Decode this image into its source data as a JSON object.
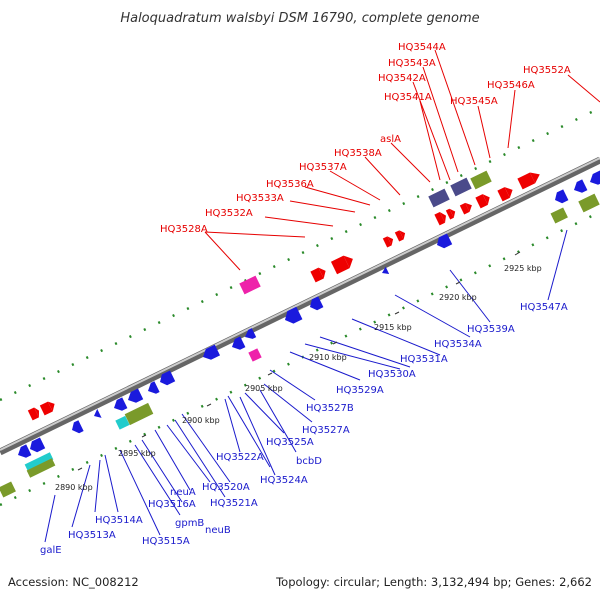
{
  "title": "Haloquadratum walsbyi DSM 16790, complete genome",
  "accession": "Accession: NC_008212",
  "summary": "Topology: circular; Length: 3,132,494 bp; Genes: 2,662",
  "colors": {
    "backbone": "#888888",
    "forward_gene": "#ee0000",
    "reverse_gene": "#1a1add",
    "rna_pink": "#ee22aa",
    "olive": "#7a9a2a",
    "slate": "#4a4a8a",
    "cyan": "#22cccc",
    "dots": "#2a8a2a"
  },
  "top_labels": [
    "HQ3544A",
    "HQ3543A",
    "HQ3542A",
    "HQ3541A",
    "HQ3546A",
    "HQ3552A",
    "HQ3545A",
    "aslA",
    "HQ3538A",
    "HQ3537A",
    "HQ3536A",
    "HQ3533A",
    "HQ3532A",
    "HQ3528A"
  ],
  "bottom_labels": [
    "HQ3547A",
    "HQ3539A",
    "HQ3534A",
    "HQ3531A",
    "HQ3530A",
    "HQ3529A",
    "HQ3527B",
    "HQ3527A",
    "bcbD",
    "HQ3525A",
    "HQ3524A",
    "HQ3522A",
    "HQ3521A",
    "HQ3520A",
    "neuA",
    "HQ3516A",
    "gpmB",
    "neuB",
    "HQ3515A",
    "HQ3514A",
    "HQ3513A",
    "galE"
  ],
  "tick_labels": [
    "2925 kbp",
    "2920 kbp",
    "2915 kbp",
    "2910 kbp",
    "2905 kbp",
    "2900 kbp",
    "2895 kbp",
    "2890 kbp"
  ]
}
